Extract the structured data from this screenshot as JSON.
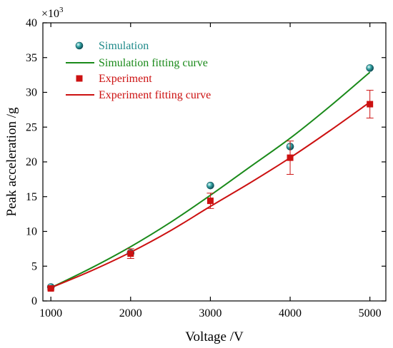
{
  "chart_data": {
    "type": "scatter",
    "title": "",
    "xlabel": "Voltage /V",
    "ylabel": "Peak acceleration /g",
    "y_multiplier": "×10",
    "y_multiplier_exp": "3",
    "xlim": [
      900,
      5200
    ],
    "ylim": [
      0,
      40
    ],
    "x_ticks": [
      1000,
      2000,
      3000,
      4000,
      5000
    ],
    "y_ticks": [
      0,
      5,
      10,
      15,
      20,
      25,
      30,
      35,
      40
    ],
    "grid": false,
    "legend_position": "top-left",
    "series": [
      {
        "name": "Simulation",
        "kind": "scatter",
        "marker": "sphere",
        "color": "#1f8a8a",
        "x": [
          1000,
          2000,
          3000,
          4000,
          5000
        ],
        "y": [
          2.0,
          6.9,
          16.6,
          22.2,
          33.5
        ]
      },
      {
        "name": "Simulation fitting curve",
        "kind": "line",
        "color": "#1a8a1a",
        "x": [
          1000,
          1500,
          2000,
          2500,
          3000,
          3500,
          4000,
          4500,
          5000
        ],
        "y": [
          1.9,
          4.7,
          7.8,
          11.3,
          15.2,
          19.3,
          23.4,
          28.0,
          32.9
        ]
      },
      {
        "name": "Experiment",
        "kind": "scatter",
        "marker": "square",
        "color": "#cc1111",
        "x": [
          1000,
          2000,
          3000,
          4000,
          5000
        ],
        "y": [
          1.8,
          6.8,
          14.4,
          20.6,
          28.3
        ],
        "yerr": [
          0.2,
          0.7,
          1.1,
          2.4,
          2.0
        ]
      },
      {
        "name": "Experiment fitting curve",
        "kind": "line",
        "color": "#cc1111",
        "x": [
          1000,
          1500,
          2000,
          2500,
          3000,
          3500,
          4000,
          4500,
          5000
        ],
        "y": [
          1.9,
          4.3,
          7.0,
          10.1,
          13.6,
          17.0,
          20.6,
          24.5,
          28.6
        ]
      }
    ]
  }
}
